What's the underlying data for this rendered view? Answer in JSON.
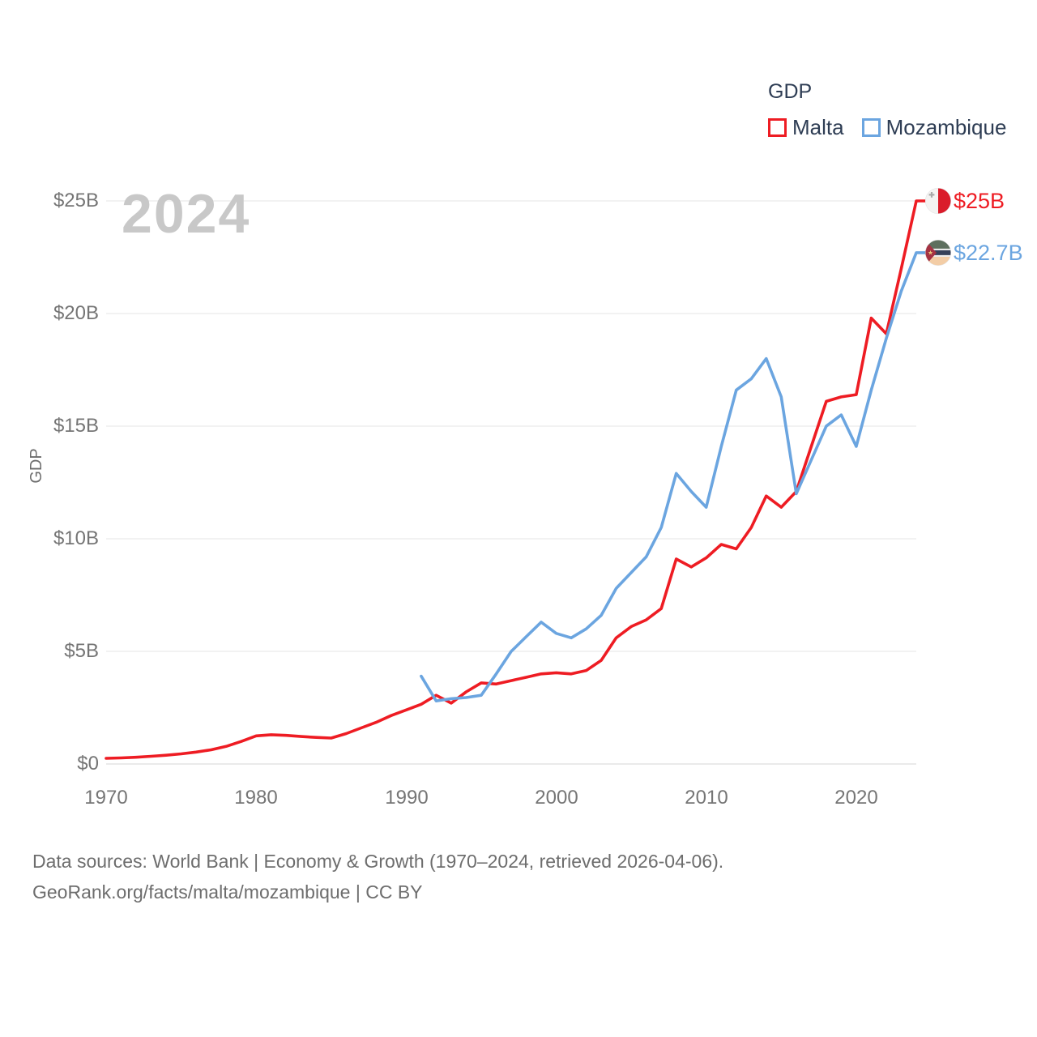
{
  "watermark": "2024",
  "legend": {
    "title": "GDP",
    "items": [
      {
        "label": "Malta",
        "color": "#ee1c23"
      },
      {
        "label": "Mozambique",
        "color": "#6ba5e0"
      }
    ]
  },
  "axes": {
    "y": {
      "title": "GDP",
      "ticks": [
        "$0",
        "$5B",
        "$10B",
        "$15B",
        "$20B",
        "$25B"
      ]
    },
    "x": {
      "ticks": [
        "1970",
        "1980",
        "1990",
        "2000",
        "2010",
        "2020"
      ]
    }
  },
  "end_labels": [
    {
      "series": "Malta",
      "value": "$25B",
      "color": "#ee1c23",
      "flag": "malta-flag"
    },
    {
      "series": "Mozambique",
      "value": "$22.7B",
      "color": "#6ba5e0",
      "flag": "mozambique-flag"
    }
  ],
  "footer": {
    "line1": "Data sources: World Bank | Economy & Growth (1970–2024, retrieved 2026-04-06).",
    "line2": "GeoRank.org/facts/malta/mozambique | CC BY"
  },
  "colors": {
    "malta": "#ee1c23",
    "mozambique": "#6ba5e0",
    "grid": "#e9e9e9",
    "zero_line": "#dddddd",
    "tick_text": "#757575",
    "legend_text": "#2e3d54"
  },
  "chart_data": {
    "type": "line",
    "title": "GDP",
    "xlabel": "",
    "ylabel": "GDP",
    "x_range": [
      1970,
      2024
    ],
    "ylim": [
      0,
      25
    ],
    "y_tick_values": [
      0,
      5,
      10,
      15,
      20,
      25
    ],
    "x_tick_values": [
      1970,
      1980,
      1990,
      2000,
      2010,
      2020
    ],
    "grid": "horizontal",
    "legend_position": "top-right",
    "units": "billions USD",
    "series": [
      {
        "name": "Malta",
        "color": "#ee1c23",
        "end_label": "$25B",
        "years": [
          1970,
          1971,
          1972,
          1973,
          1974,
          1975,
          1976,
          1977,
          1978,
          1979,
          1980,
          1981,
          1982,
          1983,
          1984,
          1985,
          1986,
          1987,
          1988,
          1989,
          1990,
          1991,
          1992,
          1993,
          1994,
          1995,
          1996,
          1997,
          1998,
          1999,
          2000,
          2001,
          2002,
          2003,
          2004,
          2005,
          2006,
          2007,
          2008,
          2009,
          2010,
          2011,
          2012,
          2013,
          2014,
          2015,
          2016,
          2017,
          2018,
          2019,
          2020,
          2021,
          2022,
          2023,
          2024
        ],
        "values": [
          0.25,
          0.27,
          0.3,
          0.34,
          0.39,
          0.45,
          0.53,
          0.63,
          0.78,
          1.0,
          1.25,
          1.3,
          1.27,
          1.22,
          1.18,
          1.15,
          1.35,
          1.6,
          1.85,
          2.15,
          2.4,
          2.65,
          3.05,
          2.7,
          3.2,
          3.6,
          3.55,
          3.7,
          3.85,
          4.0,
          4.05,
          4.0,
          4.15,
          4.6,
          5.6,
          6.1,
          6.4,
          6.9,
          9.1,
          8.75,
          9.15,
          9.75,
          9.55,
          10.5,
          11.9,
          11.4,
          12.1,
          14.1,
          16.1,
          16.3,
          16.4,
          19.8,
          19.1,
          22.0,
          25.0
        ]
      },
      {
        "name": "Mozambique",
        "color": "#6ba5e0",
        "end_label": "$22.7B",
        "years": [
          1991,
          1992,
          1993,
          1994,
          1995,
          1996,
          1997,
          1998,
          1999,
          2000,
          2001,
          2002,
          2003,
          2004,
          2005,
          2006,
          2007,
          2008,
          2009,
          2010,
          2011,
          2012,
          2013,
          2014,
          2015,
          2016,
          2017,
          2018,
          2019,
          2020,
          2021,
          2022,
          2023,
          2024
        ],
        "values": [
          3.9,
          2.8,
          2.9,
          2.95,
          3.05,
          4.0,
          5.0,
          5.65,
          6.3,
          5.8,
          5.6,
          6.0,
          6.6,
          7.8,
          8.5,
          9.2,
          10.5,
          12.9,
          12.1,
          11.4,
          14.1,
          16.6,
          17.1,
          18.0,
          16.3,
          12.0,
          13.5,
          15.0,
          15.5,
          14.1,
          16.6,
          18.9,
          21.0,
          22.7
        ]
      }
    ]
  }
}
